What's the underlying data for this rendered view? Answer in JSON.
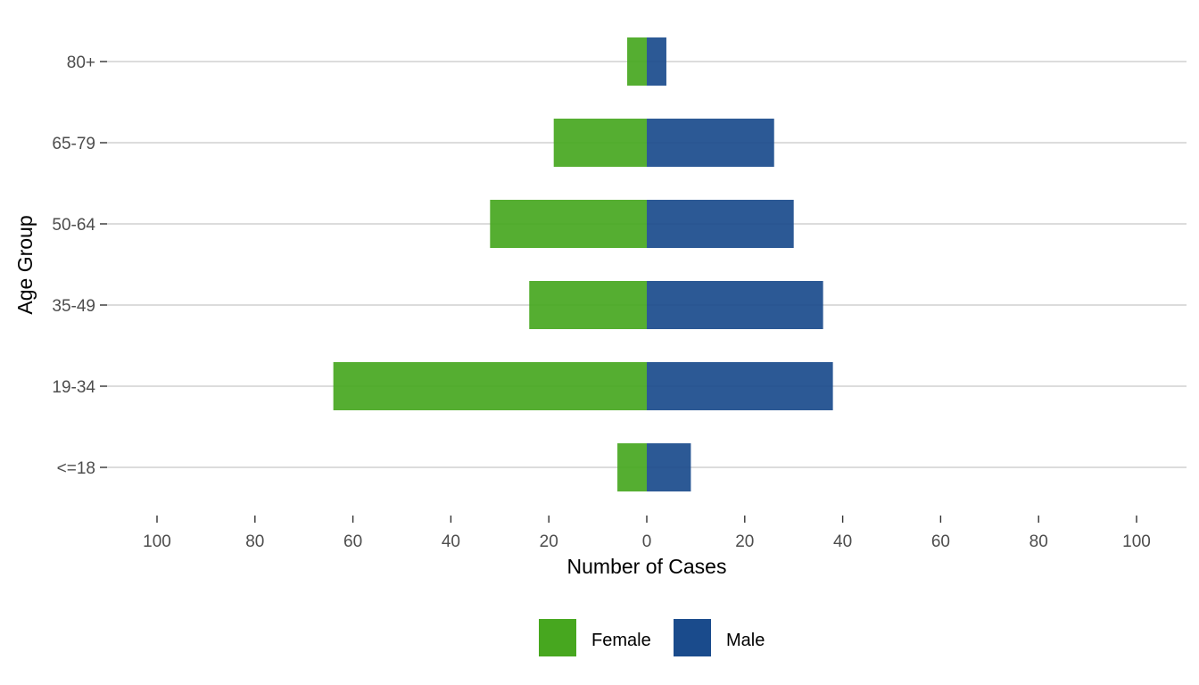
{
  "chart_data": {
    "type": "bar",
    "orientation": "horizontal",
    "layout": "population-pyramid",
    "title": "",
    "xlabel": "Number of Cases",
    "ylabel": "Age Group",
    "categories": [
      "<=18",
      "19-34",
      "35-49",
      "50-64",
      "65-79",
      "80+"
    ],
    "series": [
      {
        "name": "Female",
        "color": "#47a71f",
        "side": "left",
        "values": [
          6,
          64,
          24,
          32,
          19,
          4
        ]
      },
      {
        "name": "Male",
        "color": "#1a4b8c",
        "side": "right",
        "values": [
          9,
          38,
          36,
          30,
          26,
          4
        ]
      }
    ],
    "xlim": [
      -100,
      100
    ],
    "xticks": [
      -100,
      -80,
      -60,
      -40,
      -20,
      0,
      20,
      40,
      60,
      80,
      100
    ],
    "xtick_labels": [
      "100",
      "80",
      "60",
      "40",
      "20",
      "0",
      "20",
      "40",
      "60",
      "80",
      "100"
    ],
    "grid": "horizontal-major",
    "legend_position": "bottom"
  }
}
